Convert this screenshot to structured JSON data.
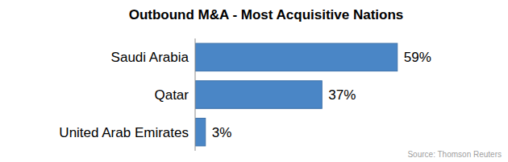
{
  "chart_data": {
    "type": "bar",
    "title": "Outbound M&A - Most Acquisitive Nations",
    "categories": [
      "Saudi Arabia",
      "Qatar",
      "United Arab Emirates"
    ],
    "values": [
      59,
      37,
      3
    ],
    "value_labels": [
      "59%",
      "37%",
      "3%"
    ],
    "color": "#4a86c6",
    "orientation": "horizontal",
    "data_labels": true,
    "tick_labels": "y",
    "grid": false,
    "xlim": [
      0,
      60
    ],
    "source": "Source: Thomson Reuters"
  }
}
